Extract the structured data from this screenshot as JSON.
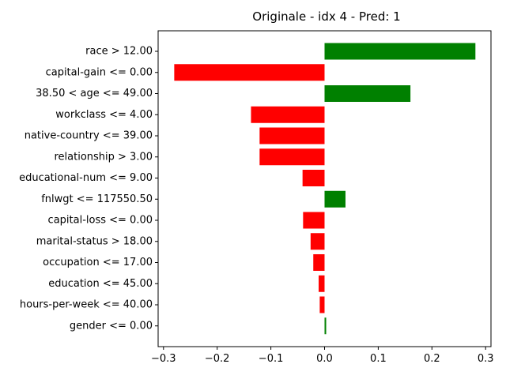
{
  "chart_data": {
    "type": "bar",
    "orientation": "horizontal",
    "title": "Originale - idx 4 - Pred: 1",
    "xlabel": "",
    "ylabel": "",
    "xlim": [
      -0.31,
      0.31
    ],
    "xticks": [
      -0.3,
      -0.2,
      -0.1,
      0.0,
      0.1,
      0.2,
      0.3
    ],
    "xtick_labels": [
      "−0.3",
      "−0.2",
      "−0.1",
      "0.0",
      "0.1",
      "0.2",
      "0.3"
    ],
    "grid": false,
    "categories": [
      "race > 12.00",
      "capital-gain <= 0.00",
      "38.50 < age <= 49.00",
      "workclass <= 4.00",
      "native-country <= 39.00",
      "relationship > 3.00",
      "educational-num <= 9.00",
      "fnlwgt <= 117550.50",
      "capital-loss <= 0.00",
      "marital-status > 18.00",
      "occupation <= 17.00",
      "education <= 45.00",
      "hours-per-week <= 40.00",
      "gender <= 0.00"
    ],
    "values": [
      0.281,
      -0.28,
      0.16,
      -0.137,
      -0.121,
      -0.121,
      -0.041,
      0.039,
      -0.04,
      -0.026,
      -0.021,
      -0.011,
      -0.009,
      0.003
    ],
    "colors": {
      "positive": "#008000",
      "negative": "#ff0000"
    }
  }
}
